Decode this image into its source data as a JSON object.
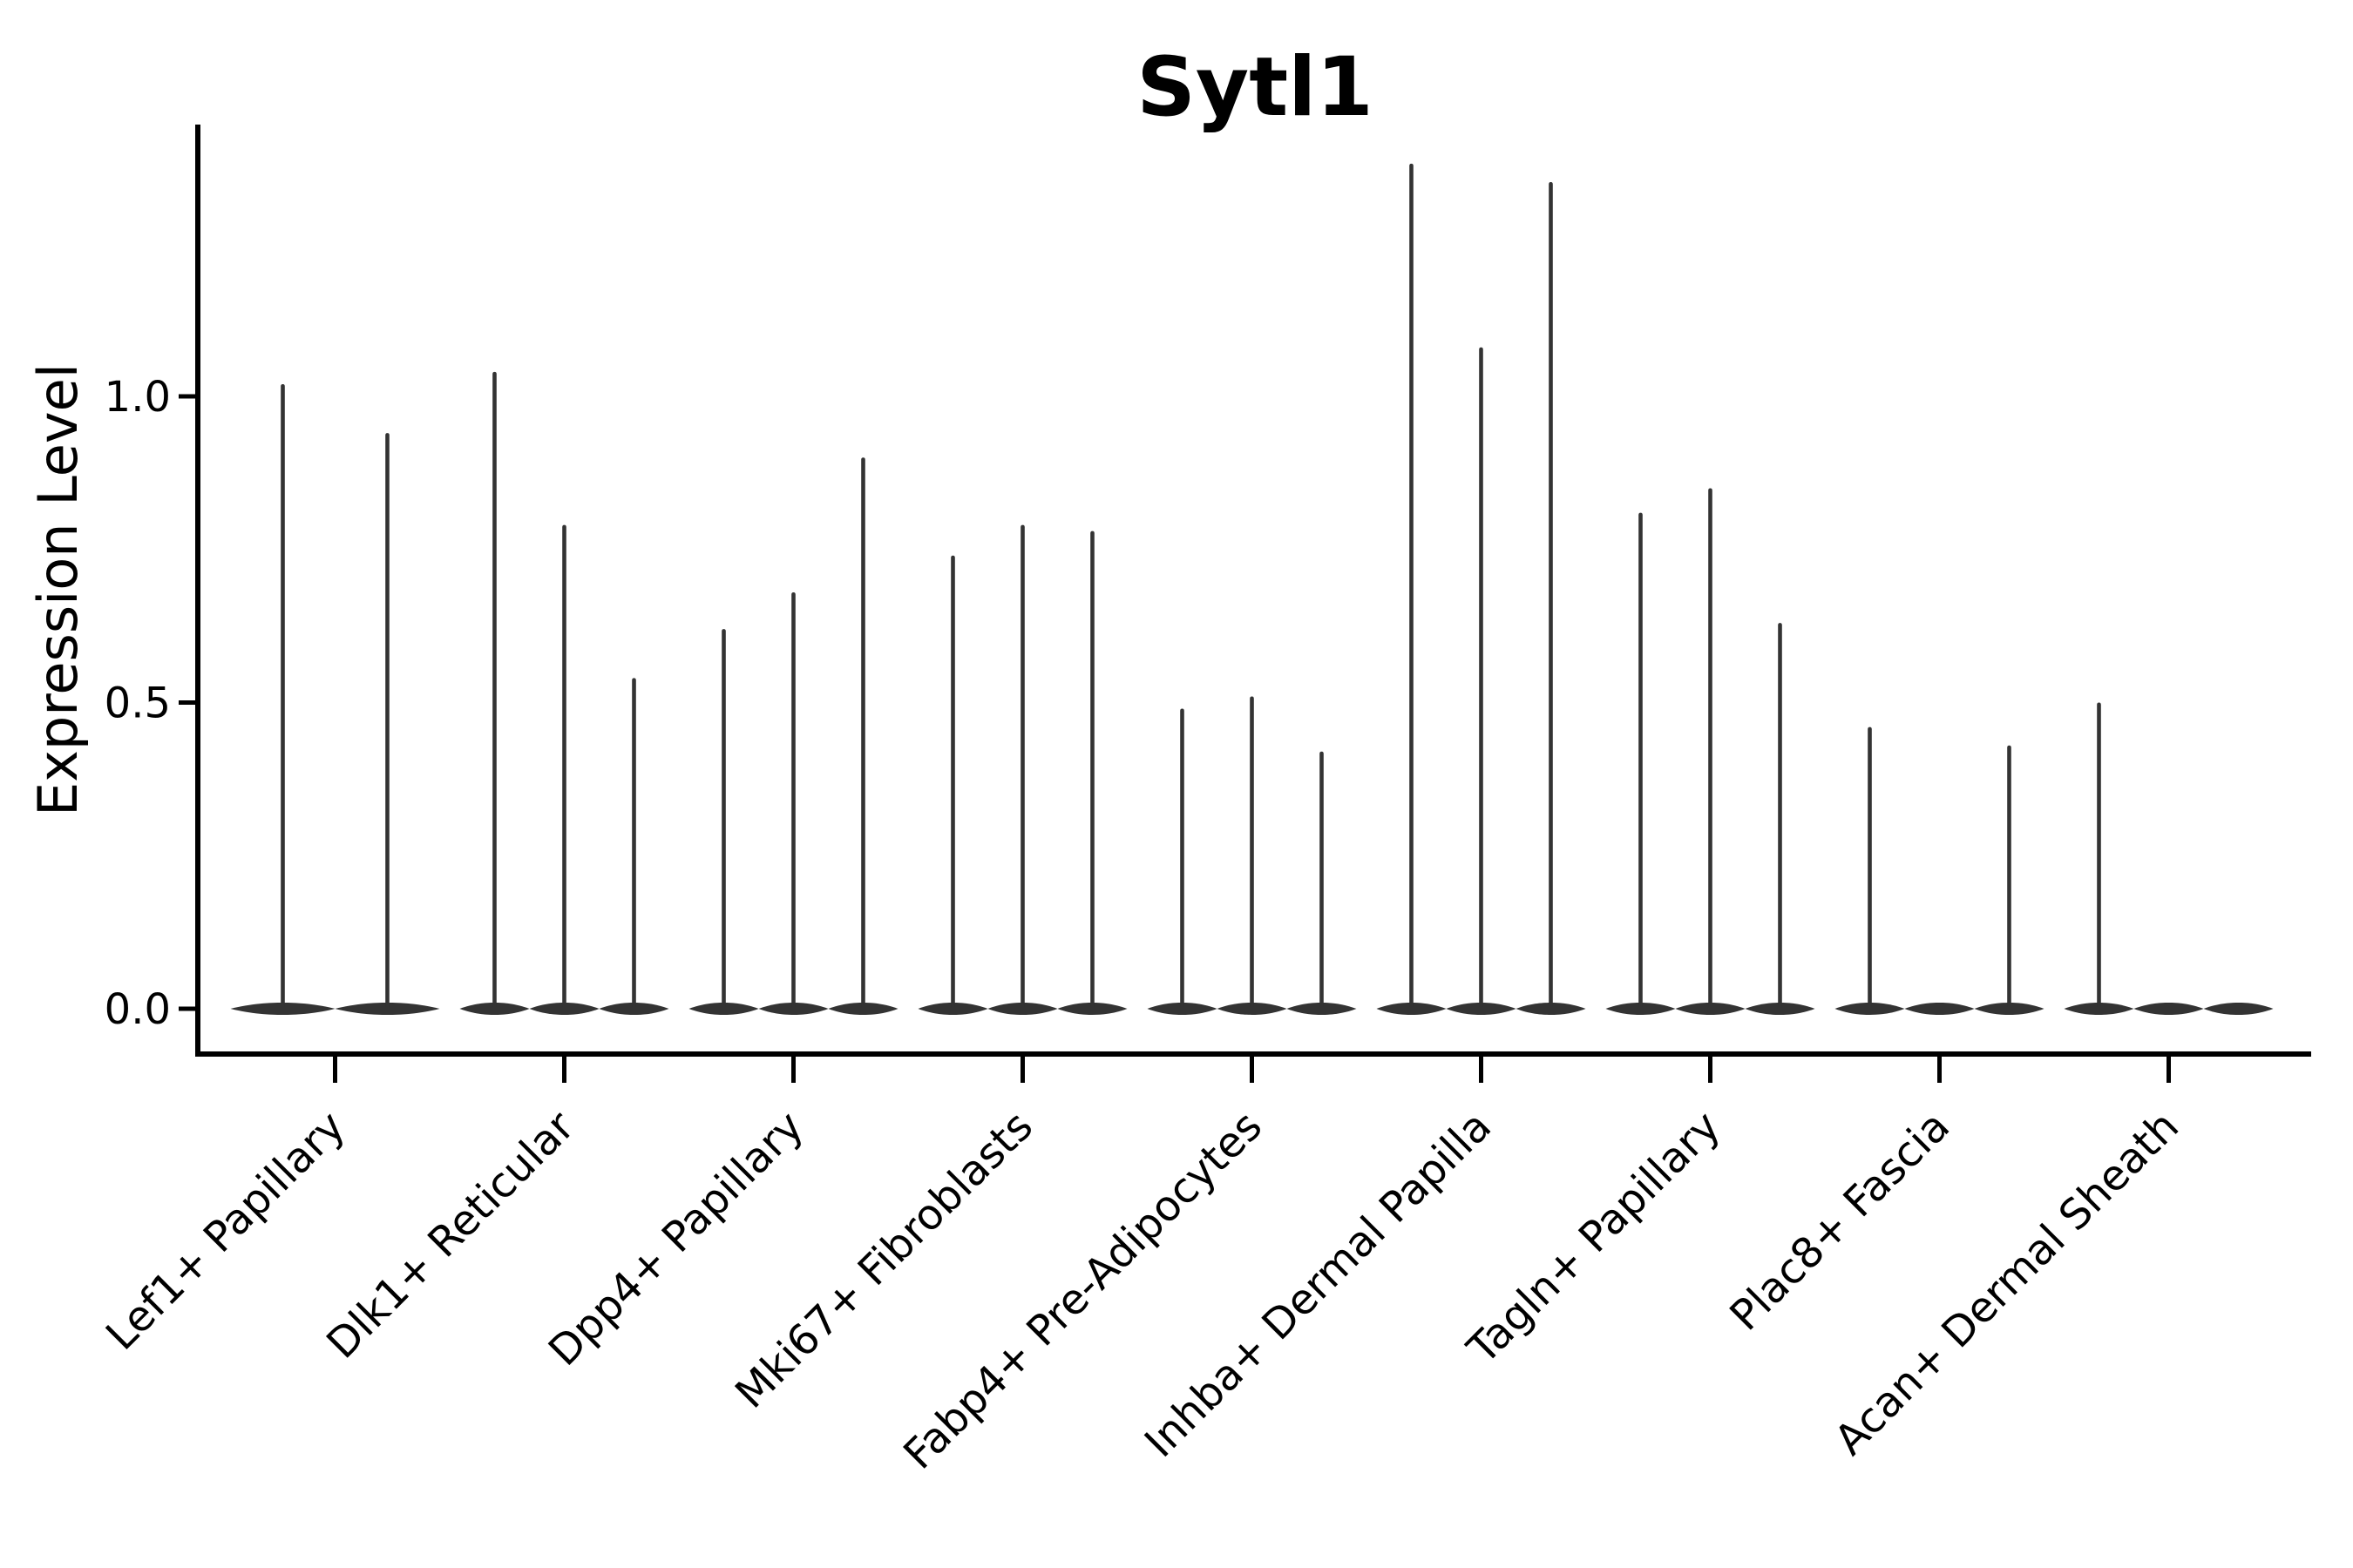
{
  "title": "Sytl1",
  "y_axis": {
    "label": "Expression Level",
    "tick_labels": [
      "0.0",
      "0.5",
      "1.0"
    ],
    "tick_values": [
      0.0,
      0.5,
      1.0
    ]
  },
  "x_axis": {
    "label": "",
    "tick_labels": [
      "Lef1+ Papillary",
      "Dlk1+ Reticular",
      "Dpp4+ Papillary",
      "Mki67+ Fibroblasts",
      "Fabp4+ Pre-Adipocytes",
      "Inhba+ Dermal Papilla",
      "Tagln+ Papillary",
      "Plac8+ Fascia",
      "Acan+ Dermal Sheath"
    ],
    "tick_rotation_degrees": 45
  },
  "colors": {
    "violin": "#333333",
    "axis": "#000000",
    "background": "#ffffff"
  },
  "chart_data": {
    "type": "violin",
    "title": "Sytl1",
    "xlabel": "",
    "ylabel": "Expression Level",
    "ylim": [
      -0.07,
      1.44
    ],
    "yticks": [
      0.0,
      0.5,
      1.0
    ],
    "grid": false,
    "legend": false,
    "categories": [
      "Lef1+ Papillary",
      "Dlk1+ Reticular",
      "Dpp4+ Papillary",
      "Mki67+ Fibroblasts",
      "Fabp4+ Pre-Adipocytes",
      "Inhba+ Dermal Papilla",
      "Tagln+ Papillary",
      "Plac8+ Fascia",
      "Acan+ Dermal Sheath"
    ],
    "groups": [
      {
        "category": "Lef1+ Papillary",
        "violin_max_expression": [
          1.02,
          0.94
        ]
      },
      {
        "category": "Dlk1+ Reticular",
        "violin_max_expression": [
          1.04,
          0.79,
          0.54
        ]
      },
      {
        "category": "Dpp4+ Papillary",
        "violin_max_expression": [
          0.62,
          0.68,
          0.9
        ]
      },
      {
        "category": "Mki67+ Fibroblasts",
        "violin_max_expression": [
          0.74,
          0.79,
          0.78
        ]
      },
      {
        "category": "Fabp4+ Pre-Adipocytes",
        "violin_max_expression": [
          0.49,
          0.51,
          0.42
        ]
      },
      {
        "category": "Inhba+ Dermal Papilla",
        "violin_max_expression": [
          1.38,
          1.08,
          1.35
        ]
      },
      {
        "category": "Tagln+ Papillary",
        "violin_max_expression": [
          0.81,
          0.85,
          0.63
        ]
      },
      {
        "category": "Plac8+ Fascia",
        "violin_max_expression": [
          0.46,
          0,
          0.43
        ]
      },
      {
        "category": "Acan+ Dermal Sheath",
        "violin_max_expression": [
          0.5,
          0,
          0
        ]
      }
    ]
  }
}
